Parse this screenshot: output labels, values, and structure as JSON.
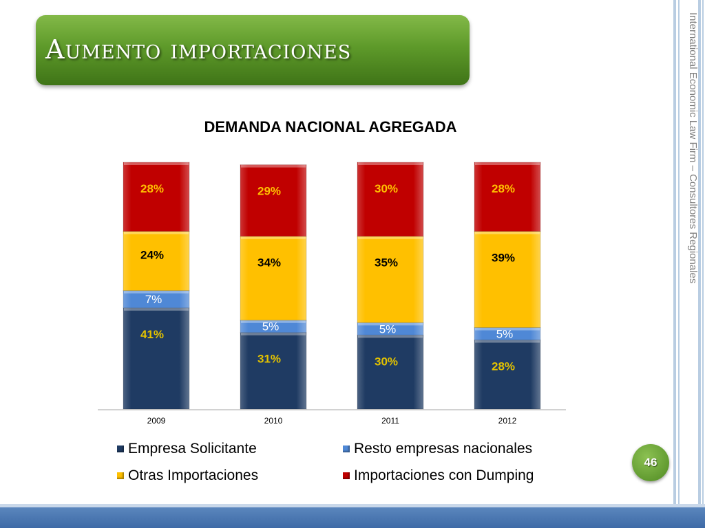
{
  "slide": {
    "title": "Aumento importaciones",
    "side_text": "International Economic Law Firm – Consultores Regionales",
    "slide_number": "46"
  },
  "colors": {
    "empresa": "#1f3b63",
    "resto": "#4f88d6",
    "otras": "#ffc000",
    "dumping": "#c00000"
  },
  "chart_data": {
    "type": "bar",
    "stacked": true,
    "title": "DEMANDA NACIONAL AGREGADA",
    "categories": [
      "2009",
      "2010",
      "2011",
      "2012"
    ],
    "series": [
      {
        "name": "Empresa Solicitante",
        "values": [
          41,
          31,
          30,
          28
        ],
        "labels": [
          "41%",
          "31%",
          "30%",
          "28%"
        ],
        "color": "#1f3b63",
        "label_color": "#e3c200"
      },
      {
        "name": "Resto empresas nacionales",
        "values": [
          7,
          5,
          5,
          5
        ],
        "labels": [
          "7%",
          "5%",
          "5%",
          "5%"
        ],
        "color": "#4f88d6",
        "label_color": "#ffffff"
      },
      {
        "name": "Otras Importaciones",
        "values": [
          24,
          34,
          35,
          39
        ],
        "labels": [
          "24%",
          "34%",
          "35%",
          "39%"
        ],
        "color": "#ffc000",
        "label_color": "#000000"
      },
      {
        "name": "Importaciones con Dumping",
        "values": [
          28,
          29,
          30,
          28
        ],
        "labels": [
          "28%",
          "29%",
          "30%",
          "28%"
        ],
        "color": "#c00000",
        "label_color": "#ffc000"
      }
    ],
    "ylim": [
      0,
      100
    ],
    "grid": false,
    "legend_position": "bottom"
  }
}
